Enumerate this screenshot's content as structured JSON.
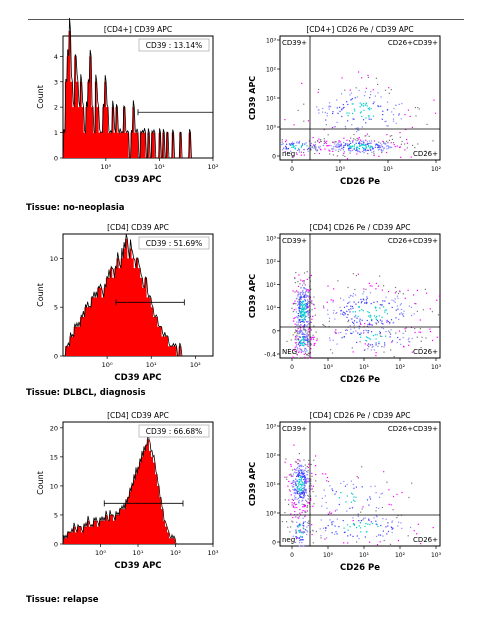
{
  "rows": [
    {
      "tissue_label": "Tissue: no-neoplasia",
      "histogram": {
        "title": "[CD4+] CD39 APC",
        "gate_label": "CD39 : 13.14%",
        "xlabel": "CD39 APC",
        "ylabel": "Count",
        "xticks": [
          "10⁰",
          "10¹",
          "10²"
        ],
        "yticks": [
          "0",
          "1",
          "2",
          "3",
          "4"
        ]
      },
      "dotplot": {
        "title": "[CD4+] CD26 Pe / CD39 APC",
        "xlabel": "CD26 Pe",
        "ylabel": "CD39 APC",
        "quadrants": {
          "ul": "CD39+",
          "ur": "CD26+CD39+",
          "ll": "neg",
          "lr": "CD26+"
        },
        "xticks": [
          "0",
          "10⁰",
          "10¹",
          "10²"
        ],
        "yticks": [
          "10³",
          "10²",
          "10¹",
          "10⁰",
          "0"
        ]
      }
    },
    {
      "tissue_label": "Tissue: DLBCL, diagnosis",
      "histogram": {
        "title": "[CD4] CD39 APC",
        "gate_label": "CD39 : 51.69%",
        "xlabel": "CD39 APC",
        "ylabel": "Count",
        "xticks": [
          "10⁰",
          "10¹",
          "10²"
        ],
        "yticks": [
          "0",
          "5",
          "10"
        ]
      },
      "dotplot": {
        "title": "[CD4] CD26 Pe / CD39 APC",
        "xlabel": "CD26 Pe",
        "ylabel": "CD39 APC",
        "quadrants": {
          "ul": "CD39+",
          "ur": "CD26+CD39+",
          "ll": "NEG",
          "lr": "CD26+"
        },
        "xticks": [
          "0",
          "10⁰",
          "10¹",
          "10²",
          "10³"
        ],
        "yticks": [
          "10³",
          "10²",
          "10¹",
          "10⁰",
          "0",
          "-0.4"
        ]
      }
    },
    {
      "tissue_label": "Tissue: relapse",
      "histogram": {
        "title": "[CD4] CD39 APC",
        "gate_label": "CD39 : 66.68%",
        "xlabel": "CD39 APC",
        "ylabel": "Count",
        "xticks": [
          "10⁰",
          "10¹",
          "10²",
          "10³"
        ],
        "yticks": [
          "0",
          "5",
          "10",
          "15",
          "20"
        ]
      },
      "dotplot": {
        "title": "[CD4] CD26 Pe / CD39 APC",
        "xlabel": "CD26 Pe",
        "ylabel": "CD39 APC",
        "quadrants": {
          "ul": "CD39+",
          "ur": "CD26+CD39+",
          "ll": "neg",
          "lr": "CD26+"
        },
        "xticks": [
          "0",
          "10⁰",
          "10¹",
          "10²",
          "10³"
        ],
        "yticks": [
          "10³",
          "10²",
          "10¹",
          "10⁰",
          "0"
        ]
      }
    }
  ],
  "chart_data": [
    {
      "type": "bar",
      "subtype": "histogram",
      "title": "[CD4+] CD39 APC",
      "xlabel": "CD39 APC",
      "ylabel": "Count",
      "x_scale": "log",
      "xlim_decades": [
        -0.8,
        2.0
      ],
      "ylim": [
        0,
        4.8
      ],
      "annotation": "CD39 : 13.14%",
      "gate": {
        "from_log": 0.6,
        "to_log": 2.0,
        "level": 1.8
      },
      "series": [
        {
          "values": [
            1,
            3,
            4,
            5,
            3,
            2,
            4,
            3,
            2,
            3,
            2,
            1,
            2,
            3,
            4,
            2,
            1,
            3,
            2,
            1,
            1,
            2,
            3,
            2,
            1,
            1,
            2,
            1,
            2,
            1,
            1,
            1,
            2,
            1,
            1,
            0,
            1,
            2,
            1,
            1,
            0,
            1,
            1,
            1,
            0,
            1,
            0,
            1,
            1,
            0,
            0,
            1,
            0,
            1,
            0,
            1,
            0,
            0,
            1,
            0,
            0,
            0,
            1,
            0,
            0,
            0,
            0,
            1,
            0,
            0,
            0,
            0,
            0,
            0,
            0,
            0,
            0,
            0,
            0,
            0
          ]
        }
      ]
    },
    {
      "type": "scatter",
      "subtype": "flow-dotplot",
      "title": "[CD4+] CD26 Pe / CD39 APC",
      "xlabel": "CD26 Pe",
      "ylabel": "CD39 APC",
      "x_gate": 0.0,
      "y_gate": 0.0,
      "populations": [
        {
          "name": "neg",
          "cx": -0.25,
          "cy": -0.55,
          "sx": 0.35,
          "sy": 0.12,
          "n": 120
        },
        {
          "name": "CD26+",
          "cx": 1.0,
          "cy": -0.55,
          "sx": 0.45,
          "sy": 0.13,
          "n": 260
        },
        {
          "name": "CD26+CD39+",
          "cx": 1.0,
          "cy": 0.6,
          "sx": 0.6,
          "sy": 0.45,
          "n": 180
        }
      ]
    },
    {
      "type": "bar",
      "subtype": "histogram",
      "title": "[CD4] CD39 APC",
      "xlabel": "CD39 APC",
      "ylabel": "Count",
      "x_scale": "log",
      "xlim_decades": [
        -1.0,
        2.4
      ],
      "ylim": [
        0,
        12.5
      ],
      "annotation": "CD39 : 51.69%",
      "gate": {
        "from_log": 0.2,
        "to_log": 1.75,
        "level": 5.5
      },
      "series": [
        {
          "values": [
            0,
            1,
            1,
            2,
            2,
            3,
            3,
            3,
            4,
            4,
            5,
            5,
            5,
            6,
            6,
            6,
            7,
            7,
            6,
            7,
            8,
            8,
            9,
            8,
            9,
            10,
            9,
            10,
            11,
            12,
            10,
            11,
            10,
            9,
            10,
            9,
            8,
            7,
            8,
            6,
            6,
            5,
            4,
            4,
            3,
            3,
            2,
            2,
            2,
            1,
            1,
            1,
            1,
            0,
            1,
            0,
            0,
            0,
            0,
            0,
            0,
            0,
            0,
            0,
            0,
            0,
            0,
            0,
            0,
            0
          ]
        }
      ]
    },
    {
      "type": "scatter",
      "subtype": "flow-dotplot",
      "title": "[CD4] CD26 Pe / CD39 APC",
      "xlabel": "CD26 Pe",
      "ylabel": "CD39 APC",
      "x_gate": 0.0,
      "y_gate": 0.0,
      "populations": [
        {
          "name": "CD39+",
          "cx": -0.15,
          "cy": 0.55,
          "sx": 0.1,
          "sy": 0.55,
          "n": 320
        },
        {
          "name": "NEG",
          "cx": -0.15,
          "cy": -0.45,
          "sx": 0.1,
          "sy": 0.25,
          "n": 140
        },
        {
          "name": "CD26+CD39+",
          "cx": 1.2,
          "cy": 0.5,
          "sx": 0.6,
          "sy": 0.45,
          "n": 260
        },
        {
          "name": "CD26+",
          "cx": 1.2,
          "cy": -0.35,
          "sx": 0.6,
          "sy": 0.25,
          "n": 120
        }
      ]
    },
    {
      "type": "bar",
      "subtype": "histogram",
      "title": "[CD4] CD39 APC",
      "xlabel": "CD39 APC",
      "ylabel": "Count",
      "x_scale": "log",
      "xlim_decades": [
        -1.0,
        3.0
      ],
      "ylim": [
        0,
        21
      ],
      "annotation": "CD39 : 66.68%",
      "gate": {
        "from_log": 0.1,
        "to_log": 2.2,
        "level": 7
      },
      "series": [
        {
          "values": [
            1,
            1,
            2,
            2,
            2,
            3,
            2,
            3,
            3,
            2,
            3,
            3,
            4,
            3,
            3,
            4,
            4,
            3,
            4,
            4,
            4,
            5,
            4,
            5,
            5,
            4,
            5,
            5,
            6,
            6,
            6,
            7,
            8,
            9,
            10,
            11,
            12,
            13,
            14,
            15,
            16,
            17,
            18,
            16,
            15,
            14,
            12,
            10,
            8,
            6,
            4,
            3,
            2,
            1,
            1,
            1,
            0,
            0,
            0,
            0,
            0,
            0,
            0,
            0,
            0,
            0,
            0,
            0,
            0,
            0,
            0,
            0,
            0,
            0,
            0
          ]
        }
      ]
    },
    {
      "type": "scatter",
      "subtype": "flow-dotplot",
      "title": "[CD4] CD26 Pe / CD39 APC",
      "xlabel": "CD26 Pe",
      "ylabel": "CD39 APC",
      "x_gate": 0.0,
      "y_gate": 0.0,
      "populations": [
        {
          "name": "CD39+",
          "cx": -0.2,
          "cy": 1.0,
          "sx": 0.12,
          "sy": 0.45,
          "n": 320
        },
        {
          "name": "neg",
          "cx": -0.2,
          "cy": -0.5,
          "sx": 0.12,
          "sy": 0.35,
          "n": 90
        },
        {
          "name": "CD26+CD39+",
          "cx": 0.8,
          "cy": 0.6,
          "sx": 0.5,
          "sy": 0.4,
          "n": 80
        },
        {
          "name": "CD26+",
          "cx": 1.0,
          "cy": -0.4,
          "sx": 0.7,
          "sy": 0.3,
          "n": 140
        }
      ]
    }
  ]
}
